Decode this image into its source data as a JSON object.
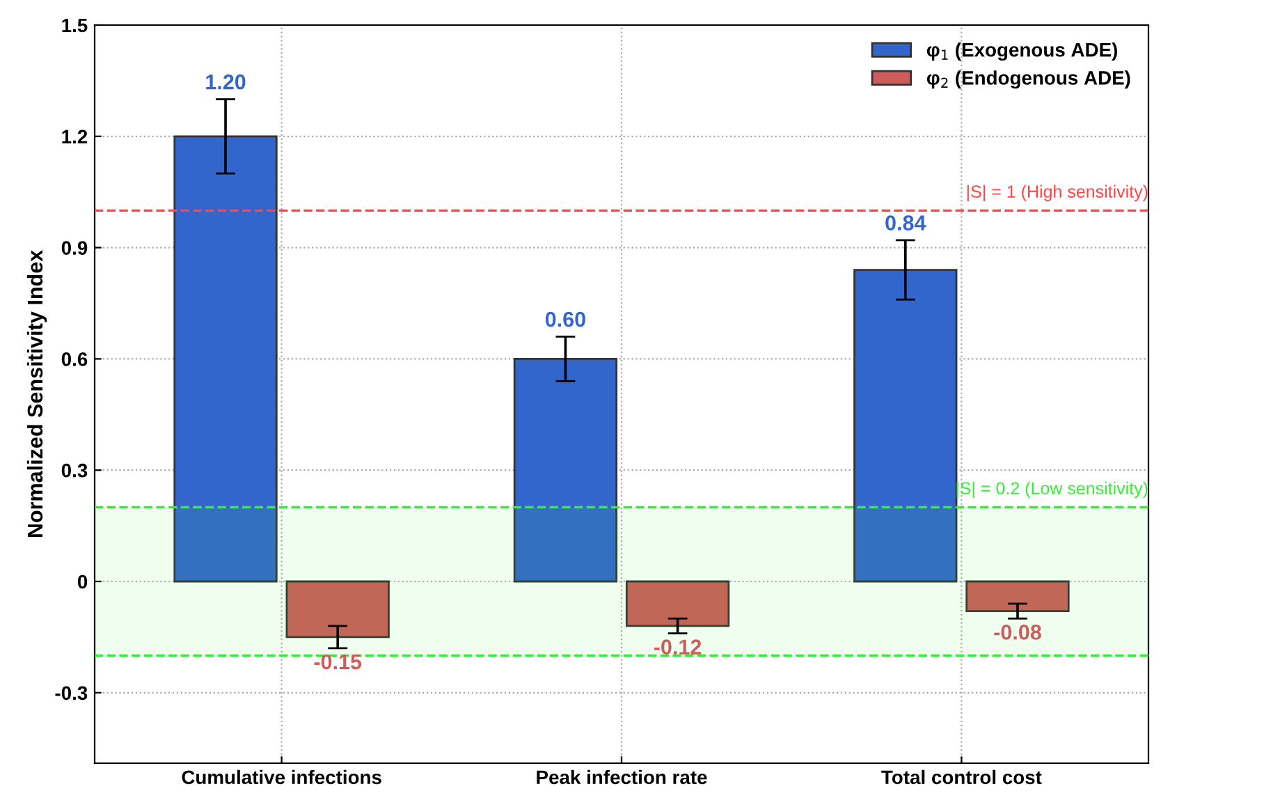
{
  "chart_data": {
    "type": "bar",
    "ylabel": "Normalized Sensitivity Index",
    "categories": [
      "Cumulative infections",
      "Peak infection rate",
      "Total control cost"
    ],
    "series": [
      {
        "name": "φ$_{1}$ (Exogenous ADE)",
        "color": "#3366cc",
        "values": [
          1.2,
          0.6,
          0.84
        ],
        "errors": [
          0.1,
          0.06,
          0.08
        ],
        "value_labels": [
          "1.20",
          "0.60",
          "0.84"
        ]
      },
      {
        "name": "φ$_{2}$ (Endogenous ADE)",
        "color": "#cd5c5c",
        "values": [
          -0.15,
          -0.12,
          -0.08
        ],
        "errors": [
          0.03,
          0.02,
          0.02
        ],
        "value_labels": [
          "-0.15",
          "-0.12",
          "-0.08"
        ]
      }
    ],
    "ylim": [
      -0.49,
      1.5
    ],
    "yticks": [
      {
        "value": -0.3,
        "label": "-0.3"
      },
      0,
      0.3,
      0.6,
      0.9,
      1.2,
      1.5
    ],
    "ref_lines": [
      {
        "axis": "y",
        "value": 1,
        "label": "|S| = 1 (High sensitivity)",
        "color": "#ff4444",
        "line_style": "dashed"
      },
      {
        "axis": "y",
        "value": 0.2,
        "color": "#33ee33",
        "line_style": "dashed"
      },
      {
        "axis": "y",
        "value": -0.2,
        "color": "#33ee33",
        "line_style": "dashed"
      }
    ],
    "bands": [
      {
        "axis": "y",
        "from": -0.2,
        "to": 0.2,
        "label": "|S| = 0.2 (Low sensitivity)",
        "color": "#33ee33"
      }
    ],
    "grid": true,
    "legend": "top right"
  }
}
